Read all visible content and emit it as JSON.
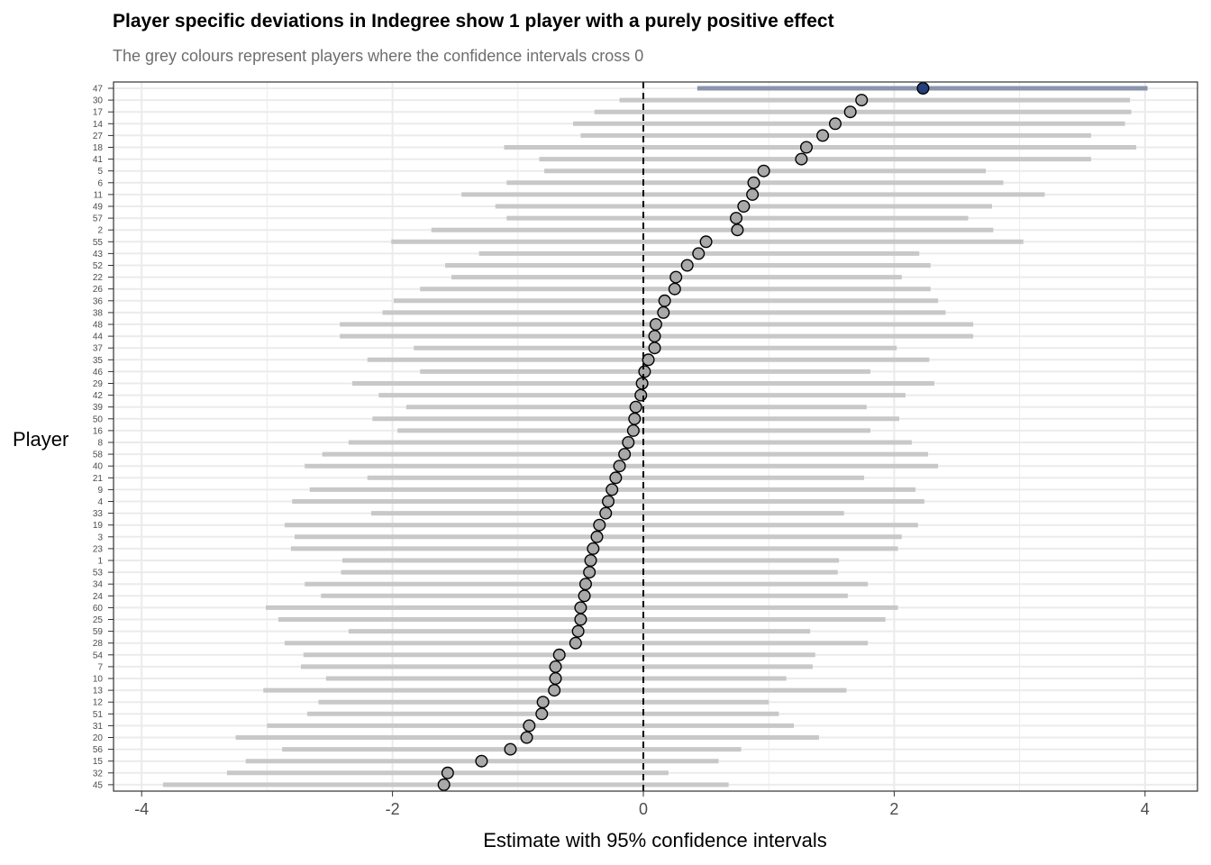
{
  "chart_data": {
    "type": "scatter",
    "title": "Player specific deviations in Indegree show 1 player with a purely positive effect",
    "subtitle": "The grey colours represent players where the confidence intervals cross 0",
    "xlabel": "Estimate with 95% confidence intervals",
    "ylabel": "Player",
    "xlim": [
      -4.2,
      4.4
    ],
    "xticks": [
      -4,
      -2,
      0,
      2,
      4
    ],
    "xtick_labels": [
      "-4",
      "-2",
      "0",
      "2",
      "4"
    ],
    "reference_line": 0,
    "grid": true,
    "colors": {
      "highlight_ci": "#8a94ad",
      "highlight_point": "#24407a",
      "grey_ci": "#c8c8c8",
      "grey_point": "#a9a9a9"
    },
    "players": [
      {
        "player": "47",
        "estimate": 2.23,
        "lower": 0.43,
        "upper": 4.02,
        "highlight": true
      },
      {
        "player": "30",
        "estimate": 1.74,
        "lower": -0.19,
        "upper": 3.88
      },
      {
        "player": "17",
        "estimate": 1.65,
        "lower": -0.39,
        "upper": 3.89
      },
      {
        "player": "14",
        "estimate": 1.53,
        "lower": -0.56,
        "upper": 3.84
      },
      {
        "player": "27",
        "estimate": 1.43,
        "lower": -0.5,
        "upper": 3.57
      },
      {
        "player": "18",
        "estimate": 1.3,
        "lower": -1.11,
        "upper": 3.93
      },
      {
        "player": "41",
        "estimate": 1.26,
        "lower": -0.83,
        "upper": 3.57
      },
      {
        "player": "5",
        "estimate": 0.96,
        "lower": -0.79,
        "upper": 2.73
      },
      {
        "player": "6",
        "estimate": 0.88,
        "lower": -1.09,
        "upper": 2.87
      },
      {
        "player": "11",
        "estimate": 0.87,
        "lower": -1.45,
        "upper": 3.2
      },
      {
        "player": "49",
        "estimate": 0.8,
        "lower": -1.18,
        "upper": 2.78
      },
      {
        "player": "57",
        "estimate": 0.74,
        "lower": -1.09,
        "upper": 2.59
      },
      {
        "player": "2",
        "estimate": 0.75,
        "lower": -1.69,
        "upper": 2.79
      },
      {
        "player": "55",
        "estimate": 0.5,
        "lower": -2.01,
        "upper": 3.03
      },
      {
        "player": "43",
        "estimate": 0.44,
        "lower": -1.31,
        "upper": 2.2
      },
      {
        "player": "52",
        "estimate": 0.35,
        "lower": -1.58,
        "upper": 2.29
      },
      {
        "player": "22",
        "estimate": 0.26,
        "lower": -1.53,
        "upper": 2.06
      },
      {
        "player": "26",
        "estimate": 0.25,
        "lower": -1.78,
        "upper": 2.29
      },
      {
        "player": "36",
        "estimate": 0.17,
        "lower": -1.99,
        "upper": 2.35
      },
      {
        "player": "38",
        "estimate": 0.16,
        "lower": -2.08,
        "upper": 2.41
      },
      {
        "player": "48",
        "estimate": 0.1,
        "lower": -2.42,
        "upper": 2.63
      },
      {
        "player": "44",
        "estimate": 0.09,
        "lower": -2.42,
        "upper": 2.63
      },
      {
        "player": "37",
        "estimate": 0.09,
        "lower": -1.83,
        "upper": 2.02
      },
      {
        "player": "35",
        "estimate": 0.04,
        "lower": -2.2,
        "upper": 2.28
      },
      {
        "player": "46",
        "estimate": 0.01,
        "lower": -1.78,
        "upper": 1.81
      },
      {
        "player": "29",
        "estimate": -0.01,
        "lower": -2.32,
        "upper": 2.32
      },
      {
        "player": "42",
        "estimate": -0.02,
        "lower": -2.11,
        "upper": 2.09
      },
      {
        "player": "39",
        "estimate": -0.06,
        "lower": -1.89,
        "upper": 1.78
      },
      {
        "player": "50",
        "estimate": -0.07,
        "lower": -2.16,
        "upper": 2.04
      },
      {
        "player": "16",
        "estimate": -0.08,
        "lower": -1.96,
        "upper": 1.81
      },
      {
        "player": "8",
        "estimate": -0.12,
        "lower": -2.35,
        "upper": 2.14
      },
      {
        "player": "58",
        "estimate": -0.15,
        "lower": -2.56,
        "upper": 2.27
      },
      {
        "player": "40",
        "estimate": -0.19,
        "lower": -2.7,
        "upper": 2.35
      },
      {
        "player": "21",
        "estimate": -0.22,
        "lower": -2.2,
        "upper": 1.76
      },
      {
        "player": "9",
        "estimate": -0.25,
        "lower": -2.66,
        "upper": 2.17
      },
      {
        "player": "4",
        "estimate": -0.28,
        "lower": -2.8,
        "upper": 2.24
      },
      {
        "player": "33",
        "estimate": -0.3,
        "lower": -2.17,
        "upper": 1.6
      },
      {
        "player": "19",
        "estimate": -0.35,
        "lower": -2.86,
        "upper": 2.19
      },
      {
        "player": "3",
        "estimate": -0.37,
        "lower": -2.78,
        "upper": 2.06
      },
      {
        "player": "23",
        "estimate": -0.4,
        "lower": -2.81,
        "upper": 2.03
      },
      {
        "player": "1",
        "estimate": -0.42,
        "lower": -2.4,
        "upper": 1.56
      },
      {
        "player": "53",
        "estimate": -0.43,
        "lower": -2.41,
        "upper": 1.55
      },
      {
        "player": "34",
        "estimate": -0.46,
        "lower": -2.7,
        "upper": 1.79
      },
      {
        "player": "24",
        "estimate": -0.47,
        "lower": -2.57,
        "upper": 1.63
      },
      {
        "player": "60",
        "estimate": -0.5,
        "lower": -3.01,
        "upper": 2.03
      },
      {
        "player": "25",
        "estimate": -0.5,
        "lower": -2.91,
        "upper": 1.93
      },
      {
        "player": "59",
        "estimate": -0.52,
        "lower": -2.35,
        "upper": 1.33
      },
      {
        "player": "28",
        "estimate": -0.54,
        "lower": -2.86,
        "upper": 1.79
      },
      {
        "player": "54",
        "estimate": -0.67,
        "lower": -2.71,
        "upper": 1.37
      },
      {
        "player": "7",
        "estimate": -0.7,
        "lower": -2.73,
        "upper": 1.35
      },
      {
        "player": "10",
        "estimate": -0.7,
        "lower": -2.53,
        "upper": 1.14
      },
      {
        "player": "13",
        "estimate": -0.71,
        "lower": -3.03,
        "upper": 1.62
      },
      {
        "player": "12",
        "estimate": -0.8,
        "lower": -2.59,
        "upper": 1.0
      },
      {
        "player": "51",
        "estimate": -0.81,
        "lower": -2.68,
        "upper": 1.08
      },
      {
        "player": "31",
        "estimate": -0.91,
        "lower": -3.0,
        "upper": 1.2
      },
      {
        "player": "20",
        "estimate": -0.93,
        "lower": -3.25,
        "upper": 1.4
      },
      {
        "player": "56",
        "estimate": -1.06,
        "lower": -2.88,
        "upper": 0.78
      },
      {
        "player": "15",
        "estimate": -1.29,
        "lower": -3.17,
        "upper": 0.6
      },
      {
        "player": "32",
        "estimate": -1.56,
        "lower": -3.32,
        "upper": 0.2
      },
      {
        "player": "45",
        "estimate": -1.59,
        "lower": -3.83,
        "upper": 0.68
      }
    ]
  }
}
